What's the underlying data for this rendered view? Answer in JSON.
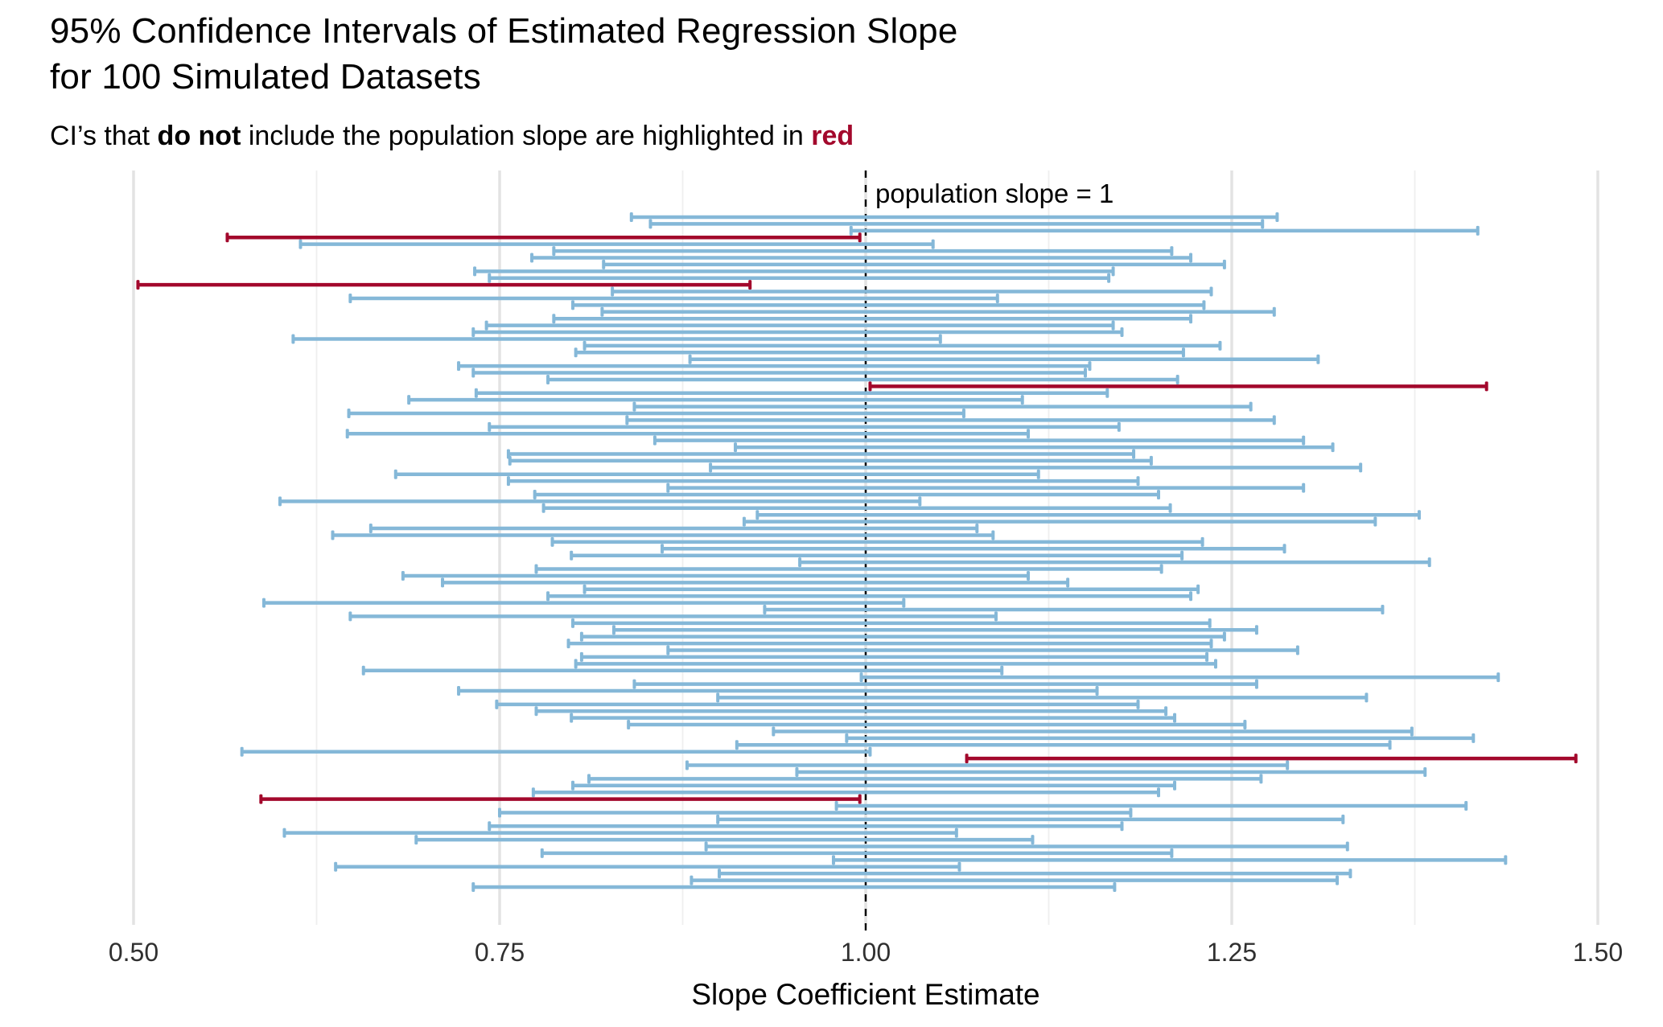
{
  "title": {
    "line1": "95% Confidence Intervals of Estimated Regression Slope",
    "line2": "for 100 Simulated Datasets"
  },
  "subtitle": {
    "prefix": "CI’s that ",
    "bold": "do not",
    "middle": " include the population slope are highlighted in ",
    "highlight": "red"
  },
  "annotation": "population slope = 1",
  "colors": {
    "ci_blue": "#85B8D8",
    "ci_red": "#A3082C",
    "grid_major": "#E3E3E3",
    "grid_minor": "#EFEFEF",
    "vline": "#000000",
    "axis_text": "#303030"
  },
  "chart_data": {
    "type": "errorbar",
    "orientation": "horizontal",
    "title": "95% Confidence Intervals of Estimated Regression Slope for 100 Simulated Datasets",
    "xlabel": "Slope Coefficient Estimate",
    "ylabel": "",
    "xlim": [
      0.47,
      1.54
    ],
    "x_ticks": [
      {
        "value": 0.5,
        "label": "0.50"
      },
      {
        "value": 0.75,
        "label": "0.75"
      },
      {
        "value": 1.0,
        "label": "1.00"
      },
      {
        "value": 1.25,
        "label": "1.25"
      },
      {
        "value": 1.5,
        "label": "1.50"
      }
    ],
    "x_minor_ticks": [
      0.625,
      0.875,
      1.125,
      1.375
    ],
    "population_slope": 1,
    "n_datasets": 100,
    "legend": "none",
    "interval_format": [
      "lower",
      "upper",
      "excludes_population_slope"
    ],
    "intervals": [
      [
        0.84,
        1.281,
        0
      ],
      [
        0.853,
        1.271,
        0
      ],
      [
        0.99,
        1.418,
        0
      ],
      [
        0.564,
        0.996,
        1
      ],
      [
        0.614,
        1.046,
        0
      ],
      [
        0.787,
        1.209,
        0
      ],
      [
        0.772,
        1.222,
        0
      ],
      [
        0.821,
        1.245,
        0
      ],
      [
        0.733,
        1.169,
        0
      ],
      [
        0.743,
        1.166,
        0
      ],
      [
        0.503,
        0.921,
        1
      ],
      [
        0.827,
        1.236,
        0
      ],
      [
        0.648,
        1.09,
        0
      ],
      [
        0.8,
        1.231,
        0
      ],
      [
        0.82,
        1.279,
        0
      ],
      [
        0.787,
        1.222,
        0
      ],
      [
        0.741,
        1.169,
        0
      ],
      [
        0.732,
        1.175,
        0
      ],
      [
        0.609,
        1.051,
        0
      ],
      [
        0.808,
        1.242,
        0
      ],
      [
        0.802,
        1.217,
        0
      ],
      [
        0.88,
        1.309,
        0
      ],
      [
        0.722,
        1.153,
        0
      ],
      [
        0.732,
        1.15,
        0
      ],
      [
        0.783,
        1.213,
        0
      ],
      [
        1.003,
        1.424,
        1
      ],
      [
        0.734,
        1.165,
        0
      ],
      [
        0.688,
        1.107,
        0
      ],
      [
        0.842,
        1.263,
        0
      ],
      [
        0.647,
        1.067,
        0
      ],
      [
        0.837,
        1.279,
        0
      ],
      [
        0.743,
        1.173,
        0
      ],
      [
        0.646,
        1.111,
        0
      ],
      [
        0.856,
        1.299,
        0
      ],
      [
        0.911,
        1.319,
        0
      ],
      [
        0.756,
        1.183,
        0
      ],
      [
        0.757,
        1.195,
        0
      ],
      [
        0.894,
        1.338,
        0
      ],
      [
        0.679,
        1.118,
        0
      ],
      [
        0.756,
        1.186,
        0
      ],
      [
        0.865,
        1.299,
        0
      ],
      [
        0.774,
        1.2,
        0
      ],
      [
        0.6,
        1.037,
        0
      ],
      [
        0.78,
        1.208,
        0
      ],
      [
        0.926,
        1.378,
        0
      ],
      [
        0.917,
        1.348,
        0
      ],
      [
        0.662,
        1.076,
        0
      ],
      [
        0.636,
        1.087,
        0
      ],
      [
        0.786,
        1.23,
        0
      ],
      [
        0.861,
        1.286,
        0
      ],
      [
        0.799,
        1.216,
        0
      ],
      [
        0.955,
        1.385,
        0
      ],
      [
        0.775,
        1.202,
        0
      ],
      [
        0.684,
        1.111,
        0
      ],
      [
        0.711,
        1.138,
        0
      ],
      [
        0.808,
        1.227,
        0
      ],
      [
        0.783,
        1.222,
        0
      ],
      [
        0.589,
        1.026,
        0
      ],
      [
        0.931,
        1.353,
        0
      ],
      [
        0.648,
        1.089,
        0
      ],
      [
        0.8,
        1.235,
        0
      ],
      [
        0.828,
        1.267,
        0
      ],
      [
        0.806,
        1.245,
        0
      ],
      [
        0.797,
        1.236,
        0
      ],
      [
        0.865,
        1.295,
        0
      ],
      [
        0.806,
        1.233,
        0
      ],
      [
        0.802,
        1.239,
        0
      ],
      [
        0.657,
        1.093,
        0
      ],
      [
        0.997,
        1.432,
        0
      ],
      [
        0.842,
        1.267,
        0
      ],
      [
        0.722,
        1.158,
        0
      ],
      [
        0.899,
        1.342,
        0
      ],
      [
        0.748,
        1.186,
        0
      ],
      [
        0.775,
        1.205,
        0
      ],
      [
        0.799,
        1.211,
        0
      ],
      [
        0.838,
        1.259,
        0
      ],
      [
        0.937,
        1.373,
        0
      ],
      [
        0.987,
        1.415,
        0
      ],
      [
        0.912,
        1.358,
        0
      ],
      [
        0.574,
        1.003,
        0
      ],
      [
        1.069,
        1.485,
        1
      ],
      [
        0.878,
        1.288,
        0
      ],
      [
        0.953,
        1.382,
        0
      ],
      [
        0.811,
        1.27,
        0
      ],
      [
        0.8,
        1.211,
        0
      ],
      [
        0.773,
        1.2,
        0
      ],
      [
        0.587,
        0.996,
        1
      ],
      [
        0.98,
        1.41,
        0
      ],
      [
        0.75,
        1.181,
        0
      ],
      [
        0.899,
        1.326,
        0
      ],
      [
        0.743,
        1.175,
        0
      ],
      [
        0.603,
        1.062,
        0
      ],
      [
        0.693,
        1.114,
        0
      ],
      [
        0.891,
        1.329,
        0
      ],
      [
        0.779,
        1.209,
        0
      ],
      [
        0.978,
        1.437,
        0
      ],
      [
        0.638,
        1.064,
        0
      ],
      [
        0.9,
        1.331,
        0
      ],
      [
        0.881,
        1.322,
        0
      ],
      [
        0.732,
        1.17,
        0
      ]
    ]
  }
}
